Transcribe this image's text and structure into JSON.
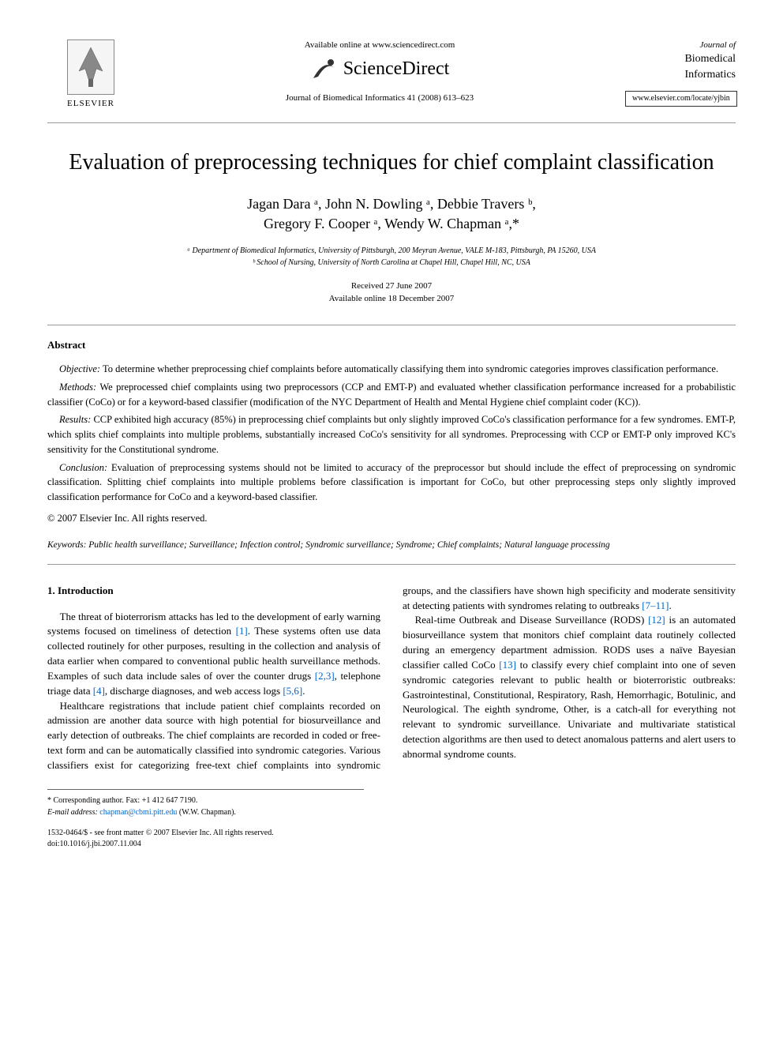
{
  "header": {
    "elsevier_label": "ELSEVIER",
    "available_online": "Available online at www.sciencedirect.com",
    "sciencedirect": "ScienceDirect",
    "journal_citation": "Journal of Biomedical Informatics 41 (2008) 613–623",
    "journal_of": "Journal of",
    "journal_name_1": "Biomedical",
    "journal_name_2": "Informatics",
    "journal_url": "www.elsevier.com/locate/yjbin"
  },
  "article": {
    "title": "Evaluation of preprocessing techniques for chief complaint classification",
    "authors_line1": "Jagan Dara ᵃ, John N. Dowling ᵃ, Debbie Travers ᵇ,",
    "authors_line2": "Gregory F. Cooper ᵃ, Wendy W. Chapman ᵃ,*",
    "affiliation_a": "ᵃ Department of Biomedical Informatics, University of Pittsburgh, 200 Meyran Avenue, VALE M-183, Pittsburgh, PA 15260, USA",
    "affiliation_b": "ᵇ School of Nursing, University of North Carolina at Chapel Hill, Chapel Hill, NC, USA",
    "received": "Received 27 June 2007",
    "available": "Available online 18 December 2007"
  },
  "abstract": {
    "heading": "Abstract",
    "objective_label": "Objective:",
    "objective": " To determine whether preprocessing chief complaints before automatically classifying them into syndromic categories improves classification performance.",
    "methods_label": "Methods:",
    "methods": " We preprocessed chief complaints using two preprocessors (CCP and EMT-P) and evaluated whether classification performance increased for a probabilistic classifier (CoCo) or for a keyword-based classifier (modification of the NYC Department of Health and Mental Hygiene chief complaint coder (KC)).",
    "results_label": "Results:",
    "results": " CCP exhibited high accuracy (85%) in preprocessing chief complaints but only slightly improved CoCo's classification performance for a few syndromes. EMT-P, which splits chief complaints into multiple problems, substantially increased CoCo's sensitivity for all syndromes. Preprocessing with CCP or EMT-P only improved KC's sensitivity for the Constitutional syndrome.",
    "conclusion_label": "Conclusion:",
    "conclusion": " Evaluation of preprocessing systems should not be limited to accuracy of the preprocessor but should include the effect of preprocessing on syndromic classification. Splitting chief complaints into multiple problems before classification is important for CoCo, but other preprocessing steps only slightly improved classification performance for CoCo and a keyword-based classifier.",
    "copyright": "© 2007 Elsevier Inc. All rights reserved."
  },
  "keywords": {
    "label": "Keywords:",
    "text": " Public health surveillance; Surveillance; Infection control; Syndromic surveillance; Syndrome; Chief complaints; Natural language processing"
  },
  "body": {
    "section_heading": "1. Introduction",
    "para1": "The threat of bioterrorism attacks has led to the development of early warning systems focused on timeliness of detection [1]. These systems often use data collected routinely for other purposes, resulting in the collection and analysis of data earlier when compared to conventional public health surveillance methods. Examples of such data include sales of over the counter drugs [2,3], telephone triage data [4], discharge diagnoses, and web access logs [5,6].",
    "para2": "Healthcare registrations that include patient chief complaints recorded on admission are another data source with high potential for biosurveillance and early detection of outbreaks. The chief complaints are recorded in coded or free-text form and can be automatically classified into syndromic categories. Various classifiers exist for categorizing free-text chief complaints into syndromic groups, and the classifiers have shown high specificity and moderate sensitivity at detecting patients with syndromes relating to outbreaks [7–11].",
    "para3": "Real-time Outbreak and Disease Surveillance (RODS) [12] is an automated biosurveillance system that monitors chief complaint data routinely collected during an emergency department admission. RODS uses a naïve Bayesian classifier called CoCo [13] to classify every chief complaint into one of seven syndromic categories relevant to public health or bioterroristic outbreaks: Gastrointestinal, Constitutional, Respiratory, Rash, Hemorrhagic, Botulinic, and Neurological. The eighth syndrome, Other, is a catch-all for everything not relevant to syndromic surveillance. Univariate and multivariate statistical detection algorithms are then used to detect anomalous patterns and alert users to abnormal syndrome counts."
  },
  "footer": {
    "corresponding": "* Corresponding author. Fax: +1 412 647 7190.",
    "email_label": "E-mail address:",
    "email": "chapman@cbmi.pitt.edu",
    "email_attribution": "(W.W. Chapman).",
    "front_matter": "1532-0464/$ - see front matter © 2007 Elsevier Inc. All rights reserved.",
    "doi": "doi:10.1016/j.jbi.2007.11.004"
  },
  "colors": {
    "link": "#0066cc",
    "divider": "#999999",
    "text": "#000000",
    "bg": "#ffffff"
  }
}
